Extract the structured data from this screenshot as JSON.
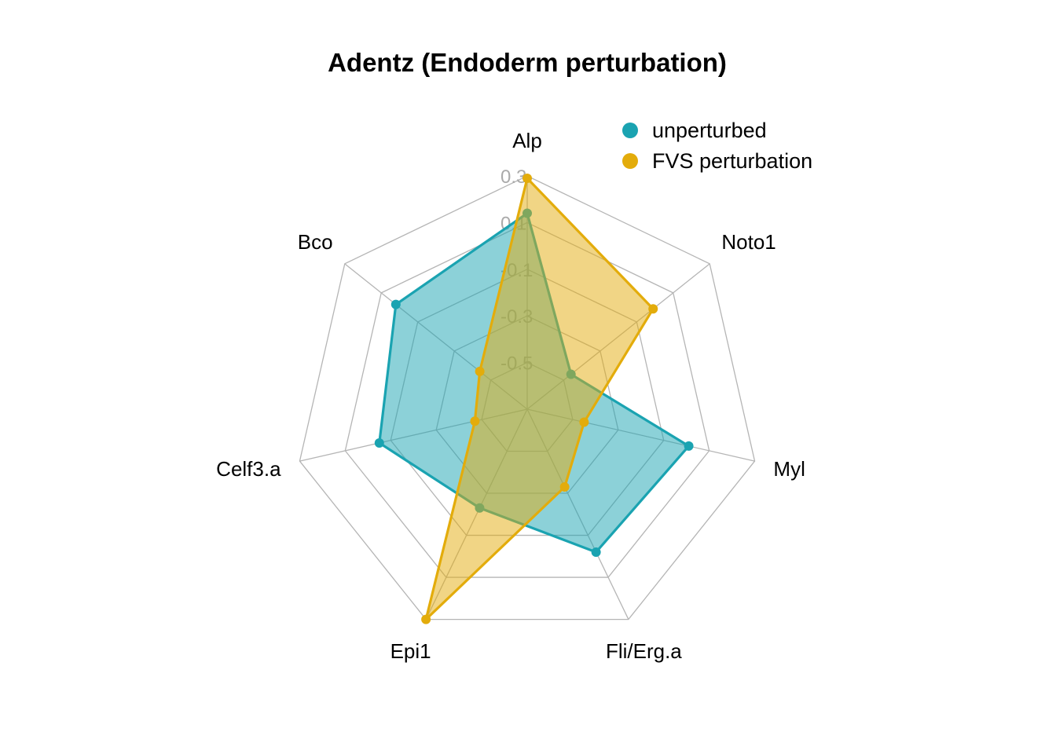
{
  "chart_data": {
    "type": "radar",
    "title": "Adentz (Endoderm perturbation)",
    "axes": [
      "Alp",
      "Noto1",
      "Myl",
      "Fli/Erg.a",
      "Epi1",
      "Celf3.a",
      "Bco"
    ],
    "rlim": [
      -0.7,
      0.3
    ],
    "ticks": [
      "0.3",
      "0.1",
      "-0.1",
      "-0.3",
      "-0.5"
    ],
    "tick_values": [
      0.3,
      0.1,
      -0.1,
      -0.3,
      -0.5
    ],
    "grid": true,
    "legend_position": "top-right",
    "series": [
      {
        "name": "unperturbed",
        "color": "#1aa3b1",
        "values": [
          0.14,
          -0.46,
          0.01,
          -0.02,
          -0.23,
          -0.05,
          0.02
        ]
      },
      {
        "name": "FVS perturbation",
        "color": "#e3ac0b",
        "values": [
          0.29,
          -0.01,
          -0.45,
          -0.33,
          0.3,
          -0.47,
          -0.44
        ]
      }
    ]
  }
}
